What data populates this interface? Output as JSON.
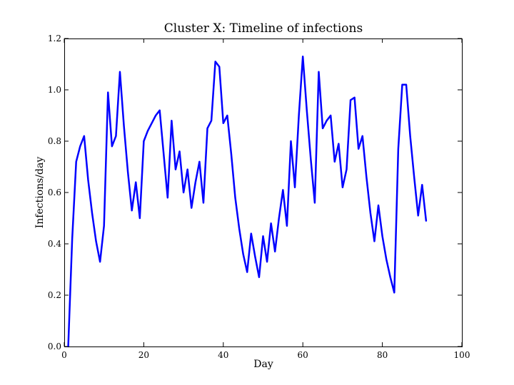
{
  "chart_data": {
    "type": "line",
    "title": "Cluster X: Timeline of infections",
    "xlabel": "Day",
    "ylabel": "Infections/day",
    "xlim": [
      0,
      100
    ],
    "ylim": [
      0.0,
      1.2
    ],
    "xticks": [
      "0",
      "20",
      "40",
      "60",
      "80",
      "100"
    ],
    "yticks": [
      "0.0",
      "0.2",
      "0.4",
      "0.6",
      "0.8",
      "1.0",
      "1.2"
    ],
    "grid": false,
    "line_color": "#0000ff",
    "series": [
      {
        "x": [
          1,
          2,
          3,
          4,
          5,
          6,
          7,
          8,
          9,
          10,
          11,
          12,
          13,
          14,
          15,
          16,
          17,
          18,
          19,
          20,
          21,
          22,
          23,
          24,
          25,
          26,
          27,
          28,
          29,
          30,
          31,
          32,
          33,
          34,
          35,
          36,
          37,
          38,
          39,
          40,
          41,
          42,
          43,
          44,
          45,
          46,
          47,
          48,
          49,
          50,
          51,
          52,
          53,
          54,
          55,
          56,
          57,
          58,
          59,
          60,
          61,
          62,
          63,
          64,
          65,
          66,
          67,
          68,
          69,
          70,
          71,
          72,
          73,
          74,
          75,
          76,
          77,
          78,
          79,
          80,
          81,
          82,
          83,
          84,
          85,
          86,
          87,
          88,
          89,
          90,
          91
        ],
        "values": [
          0.0,
          0.42,
          0.72,
          0.78,
          0.82,
          0.65,
          0.52,
          0.41,
          0.33,
          0.47,
          0.99,
          0.78,
          0.82,
          1.07,
          0.86,
          0.68,
          0.53,
          0.64,
          0.5,
          0.8,
          0.84,
          0.87,
          0.9,
          0.92,
          0.75,
          0.58,
          0.88,
          0.69,
          0.76,
          0.6,
          0.69,
          0.54,
          0.64,
          0.72,
          0.56,
          0.85,
          0.88,
          1.11,
          1.09,
          0.87,
          0.9,
          0.75,
          0.58,
          0.46,
          0.36,
          0.29,
          0.44,
          0.35,
          0.27,
          0.43,
          0.33,
          0.48,
          0.37,
          0.5,
          0.61,
          0.47,
          0.8,
          0.62,
          0.9,
          1.13,
          0.92,
          0.73,
          0.56,
          1.07,
          0.85,
          0.88,
          0.9,
          0.72,
          0.79,
          0.62,
          0.69,
          0.96,
          0.97,
          0.77,
          0.82,
          0.66,
          0.52,
          0.41,
          0.55,
          0.43,
          0.34,
          0.27,
          0.21,
          0.77,
          1.02,
          1.02,
          0.82,
          0.66,
          0.51,
          0.63,
          0.49
        ]
      }
    ]
  }
}
